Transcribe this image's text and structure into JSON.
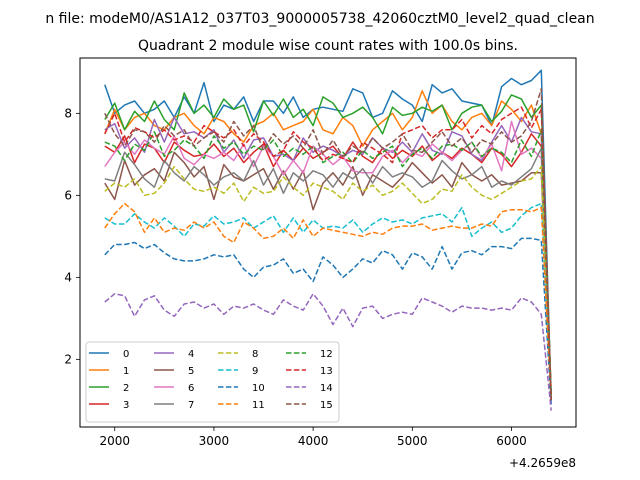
{
  "suptitle": "n file: modeM0/AS1A12_037T03_9000005738_42060cztM0_level2_quad_clean",
  "chart_data": {
    "type": "line",
    "title": "Quadrant 2 module wise count rates with 100.0s bins.",
    "x_offset_label": "+4.2659e8",
    "xlim": [
      1650,
      6650
    ],
    "ylim": [
      0.35,
      9.35
    ],
    "xticks": [
      2000,
      3000,
      4000,
      5000,
      6000
    ],
    "yticks": [
      2,
      4,
      6,
      8
    ],
    "x": [
      1900,
      2000,
      2100,
      2200,
      2300,
      2400,
      2500,
      2600,
      2700,
      2800,
      2900,
      3000,
      3100,
      3200,
      3300,
      3400,
      3500,
      3600,
      3700,
      3800,
      3900,
      4000,
      4100,
      4200,
      4300,
      4400,
      4500,
      4600,
      4700,
      4800,
      4900,
      5000,
      5100,
      5200,
      5300,
      5400,
      5500,
      5600,
      5700,
      5800,
      5900,
      6000,
      6100,
      6200,
      6300,
      6400
    ],
    "legend_position": "lower-left",
    "series": [
      {
        "name": "0",
        "color": "#1f77b4",
        "dash": "solid",
        "values": [
          8.7,
          8.0,
          8.2,
          8.3,
          8.0,
          8.1,
          8.3,
          7.9,
          8.4,
          8.0,
          8.75,
          7.8,
          8.2,
          8.1,
          8.4,
          7.8,
          8.3,
          8.3,
          8.0,
          8.4,
          7.9,
          8.1,
          8.15,
          8.1,
          8.05,
          8.6,
          8.5,
          7.9,
          8.0,
          8.55,
          8.35,
          8.2,
          7.8,
          8.7,
          8.5,
          8.6,
          8.3,
          8.25,
          8.2,
          7.7,
          8.65,
          8.85,
          8.7,
          8.8,
          9.05,
          1.0
        ]
      },
      {
        "name": "1",
        "color": "#ff7f0e",
        "dash": "solid",
        "values": [
          7.5,
          8.1,
          7.6,
          7.9,
          8.0,
          7.7,
          7.6,
          7.9,
          8.0,
          7.7,
          7.5,
          7.9,
          7.8,
          7.5,
          7.3,
          7.7,
          7.8,
          8.0,
          7.6,
          7.7,
          7.8,
          8.1,
          7.6,
          7.5,
          7.9,
          7.7,
          7.2,
          7.6,
          7.8,
          8.0,
          7.6,
          7.9,
          8.55,
          8.0,
          8.2,
          7.8,
          7.6,
          7.9,
          8.0,
          7.7,
          8.3,
          8.1,
          7.8,
          8.2,
          7.5,
          1.2
        ]
      },
      {
        "name": "2",
        "color": "#2ca02c",
        "dash": "solid",
        "values": [
          7.85,
          8.25,
          7.6,
          8.05,
          7.8,
          8.3,
          7.85,
          7.6,
          8.5,
          8.0,
          8.2,
          7.9,
          8.35,
          8.1,
          8.2,
          7.55,
          8.3,
          7.95,
          8.35,
          7.9,
          8.1,
          7.7,
          8.4,
          8.25,
          7.9,
          8.0,
          8.15,
          7.9,
          7.5,
          8.15,
          7.95,
          8.0,
          8.15,
          8.05,
          8.2,
          7.6,
          8.0,
          8.15,
          8.2,
          7.8,
          8.05,
          8.45,
          8.35,
          7.9,
          8.2,
          1.1
        ]
      },
      {
        "name": "3",
        "color": "#d62728",
        "dash": "solid",
        "values": [
          7.2,
          7.05,
          7.45,
          6.8,
          7.25,
          7.15,
          6.8,
          7.3,
          7.1,
          6.95,
          7.0,
          7.25,
          6.95,
          7.15,
          6.8,
          7.05,
          7.25,
          6.7,
          7.1,
          6.85,
          7.15,
          6.9,
          7.05,
          7.2,
          6.9,
          7.3,
          6.95,
          6.8,
          7.15,
          6.9,
          7.1,
          6.95,
          7.2,
          6.85,
          7.05,
          6.9,
          7.15,
          7.0,
          6.8,
          7.15,
          7.0,
          6.7,
          7.05,
          7.5,
          7.2,
          1.0
        ]
      },
      {
        "name": "4",
        "color": "#9467bd",
        "dash": "solid",
        "values": [
          7.6,
          7.75,
          7.15,
          7.4,
          7.05,
          7.85,
          7.3,
          7.9,
          7.5,
          7.55,
          7.4,
          7.6,
          7.05,
          7.35,
          6.9,
          7.35,
          7.4,
          6.95,
          7.0,
          6.85,
          7.4,
          7.05,
          7.2,
          7.1,
          6.95,
          7.1,
          7.0,
          7.4,
          7.15,
          7.05,
          7.3,
          7.05,
          7.5,
          7.1,
          7.0,
          7.55,
          7.45,
          7.0,
          6.85,
          7.3,
          7.7,
          7.3,
          7.9,
          7.55,
          7.5,
          1.0
        ]
      },
      {
        "name": "5",
        "color": "#8c564b",
        "dash": "solid",
        "values": [
          6.3,
          5.9,
          6.85,
          6.25,
          6.5,
          6.65,
          6.35,
          7.05,
          6.8,
          6.45,
          6.7,
          5.9,
          6.75,
          6.45,
          6.35,
          6.5,
          6.65,
          6.15,
          6.6,
          6.15,
          6.6,
          5.65,
          6.3,
          6.55,
          6.25,
          6.7,
          6.0,
          6.5,
          6.35,
          6.2,
          6.45,
          6.8,
          6.55,
          6.3,
          6.5,
          6.2,
          6.8,
          6.5,
          6.35,
          6.5,
          6.25,
          6.3,
          6.35,
          6.55,
          6.55,
          1.0
        ]
      },
      {
        "name": "6",
        "color": "#e377c2",
        "dash": "solid",
        "values": [
          6.7,
          7.05,
          7.3,
          7.0,
          7.35,
          7.15,
          7.0,
          7.45,
          6.9,
          6.75,
          7.0,
          6.9,
          7.05,
          6.85,
          7.25,
          6.7,
          7.2,
          6.95,
          6.5,
          6.85,
          6.55,
          7.2,
          7.0,
          6.75,
          6.95,
          6.6,
          6.55,
          6.55,
          6.95,
          7.1,
          6.8,
          7.05,
          6.95,
          7.25,
          7.05,
          6.85,
          7.1,
          7.3,
          6.9,
          7.25,
          6.6,
          7.8,
          7.0,
          7.15,
          6.9,
          1.0
        ]
      },
      {
        "name": "7",
        "color": "#7f7f7f",
        "dash": "solid",
        "values": [
          6.4,
          6.35,
          7.05,
          6.75,
          6.4,
          6.2,
          6.85,
          6.55,
          6.35,
          6.7,
          6.5,
          6.25,
          6.45,
          6.55,
          6.35,
          6.85,
          6.25,
          6.65,
          6.05,
          6.55,
          6.35,
          6.6,
          6.5,
          6.2,
          6.55,
          6.4,
          6.65,
          6.3,
          6.7,
          6.45,
          6.55,
          6.45,
          6.2,
          6.35,
          6.85,
          6.6,
          6.4,
          6.5,
          6.7,
          6.2,
          6.35,
          6.25,
          6.45,
          6.65,
          7.15,
          1.0
        ]
      },
      {
        "name": "8",
        "color": "#bcbd22",
        "dash": "dashed",
        "values": [
          6.1,
          6.3,
          6.2,
          6.4,
          6.0,
          6.05,
          6.3,
          6.7,
          6.4,
          6.15,
          6.1,
          6.2,
          6.05,
          6.3,
          5.85,
          6.2,
          6.05,
          6.1,
          6.45,
          6.2,
          6.0,
          6.3,
          6.2,
          6.1,
          5.9,
          6.3,
          6.1,
          6.25,
          6.0,
          6.1,
          6.3,
          6.05,
          5.8,
          5.9,
          6.15,
          6.1,
          6.5,
          6.2,
          6.0,
          5.9,
          6.05,
          6.2,
          6.35,
          6.4,
          6.7,
          1.1
        ]
      },
      {
        "name": "9",
        "color": "#17becf",
        "dash": "dashed",
        "values": [
          5.45,
          5.3,
          5.3,
          5.55,
          5.35,
          5.2,
          5.45,
          5.25,
          5.0,
          5.3,
          5.25,
          5.5,
          5.3,
          5.35,
          5.45,
          5.2,
          5.35,
          5.5,
          5.1,
          5.45,
          5.1,
          5.4,
          5.2,
          5.25,
          5.2,
          5.4,
          5.1,
          5.3,
          5.45,
          5.35,
          5.4,
          5.3,
          5.45,
          5.5,
          5.55,
          5.35,
          5.7,
          5.0,
          5.2,
          5.35,
          5.1,
          5.2,
          5.5,
          5.7,
          5.8,
          1.2
        ]
      },
      {
        "name": "10",
        "color": "#1f77b4",
        "dash": "dashed",
        "values": [
          4.55,
          4.8,
          4.8,
          4.85,
          4.7,
          4.8,
          4.6,
          4.45,
          4.4,
          4.4,
          4.45,
          4.55,
          4.5,
          4.55,
          4.2,
          4.0,
          4.25,
          4.3,
          4.45,
          4.1,
          4.2,
          3.9,
          4.5,
          4.3,
          4.0,
          4.2,
          4.45,
          4.35,
          4.65,
          4.55,
          4.2,
          4.6,
          4.5,
          4.2,
          4.75,
          4.2,
          4.6,
          4.65,
          4.55,
          4.75,
          4.75,
          4.7,
          4.95,
          4.95,
          4.9,
          0.9
        ]
      },
      {
        "name": "11",
        "color": "#ff7f0e",
        "dash": "dashed",
        "values": [
          5.2,
          5.55,
          5.8,
          5.6,
          5.1,
          5.45,
          5.1,
          5.2,
          5.15,
          5.35,
          5.2,
          5.35,
          5.0,
          4.85,
          5.35,
          5.2,
          4.95,
          5.0,
          5.2,
          4.95,
          5.4,
          5.0,
          5.2,
          5.15,
          5.1,
          5.05,
          5.0,
          5.1,
          5.05,
          5.2,
          5.25,
          5.25,
          5.3,
          5.15,
          5.2,
          5.25,
          5.2,
          5.2,
          5.3,
          5.25,
          5.6,
          5.65,
          5.65,
          5.6,
          5.7,
          1.0
        ]
      },
      {
        "name": "12",
        "color": "#2ca02c",
        "dash": "dashed",
        "values": [
          7.3,
          7.2,
          6.85,
          7.25,
          7.1,
          7.55,
          6.95,
          7.1,
          7.35,
          7.2,
          6.9,
          7.45,
          7.15,
          7.3,
          7.0,
          7.2,
          7.1,
          7.35,
          6.95,
          7.15,
          7.0,
          7.2,
          6.8,
          6.95,
          7.05,
          6.8,
          7.1,
          6.9,
          7.05,
          7.2,
          6.7,
          7.0,
          7.15,
          6.9,
          7.2,
          7.25,
          7.1,
          7.3,
          6.95,
          7.15,
          7.05,
          6.8,
          7.35,
          6.95,
          7.6,
          1.1
        ]
      },
      {
        "name": "13",
        "color": "#d62728",
        "dash": "dashed",
        "values": [
          7.5,
          8.0,
          7.3,
          7.65,
          7.55,
          7.4,
          7.6,
          7.35,
          7.45,
          7.3,
          7.7,
          7.55,
          7.4,
          7.6,
          7.2,
          7.5,
          7.3,
          6.95,
          7.1,
          7.55,
          7.3,
          7.15,
          6.85,
          7.0,
          6.9,
          6.8,
          7.3,
          7.15,
          7.0,
          6.8,
          7.5,
          7.6,
          7.7,
          7.4,
          7.6,
          7.6,
          7.85,
          7.4,
          7.7,
          7.5,
          7.85,
          8.0,
          8.15,
          7.65,
          8.1,
          1.0
        ]
      },
      {
        "name": "14",
        "color": "#9467bd",
        "dash": "dashed",
        "values": [
          3.4,
          3.6,
          3.55,
          3.05,
          3.45,
          3.55,
          3.2,
          3.05,
          3.35,
          3.4,
          3.25,
          3.35,
          3.1,
          3.3,
          3.25,
          3.35,
          3.2,
          3.1,
          3.45,
          3.3,
          3.2,
          3.6,
          3.3,
          2.85,
          3.25,
          2.8,
          3.25,
          3.3,
          3.0,
          3.1,
          3.15,
          3.1,
          3.5,
          3.4,
          3.3,
          3.15,
          3.3,
          3.25,
          3.25,
          3.2,
          3.25,
          3.2,
          3.5,
          3.4,
          3.1,
          0.75
        ]
      },
      {
        "name": "15",
        "color": "#8c564b",
        "dash": "dashed",
        "values": [
          8.0,
          7.5,
          7.2,
          7.6,
          7.55,
          7.3,
          7.7,
          7.45,
          7.6,
          7.2,
          7.4,
          7.55,
          7.3,
          7.8,
          7.45,
          7.7,
          7.1,
          7.5,
          7.25,
          7.45,
          7.15,
          7.6,
          7.0,
          7.35,
          6.95,
          7.2,
          7.05,
          7.4,
          7.15,
          7.3,
          7.5,
          7.1,
          7.05,
          7.3,
          7.55,
          7.2,
          7.4,
          7.05,
          7.35,
          7.25,
          7.55,
          7.3,
          7.45,
          7.8,
          8.6,
          1.0
        ]
      }
    ]
  }
}
